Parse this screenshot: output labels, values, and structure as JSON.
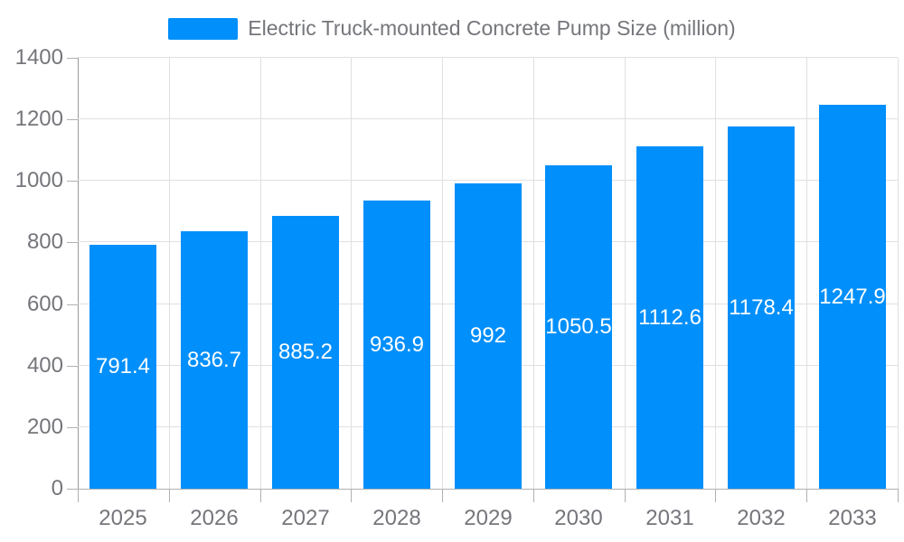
{
  "chart_data": {
    "type": "bar",
    "title": "Electric Truck-mounted Concrete Pump Size (million)",
    "series_name": "Electric Truck-mounted Concrete Pump Size (million)",
    "categories": [
      "2025",
      "2026",
      "2027",
      "2028",
      "2029",
      "2030",
      "2031",
      "2032",
      "2033"
    ],
    "values": [
      791.4,
      836.7,
      885.2,
      936.9,
      992,
      1050.5,
      1112.6,
      1178.4,
      1247.9
    ],
    "value_labels": [
      "791.4",
      "836.7",
      "885.2",
      "936.9",
      "992",
      "1050.5",
      "1112.6",
      "1178.4",
      "1247.9"
    ],
    "xlabel": "",
    "ylabel": "",
    "ylim": [
      0,
      1400
    ],
    "ytick_step": 200,
    "ytick_labels": [
      "0",
      "200",
      "400",
      "600",
      "800",
      "1000",
      "1200",
      "1400"
    ],
    "grid": "on",
    "legend_position": "top",
    "value_label_position": "center-of-bar"
  },
  "colors": {
    "bar": "#008FFB",
    "bar_label": "#ffffff",
    "axis_text": "#75767b",
    "legend_text": "#75767b",
    "gridline": "#e0e0e0",
    "x_axis_line": "#b1b1b1",
    "y_axis_line": "#9a9a9a",
    "background": "#ffffff"
  }
}
